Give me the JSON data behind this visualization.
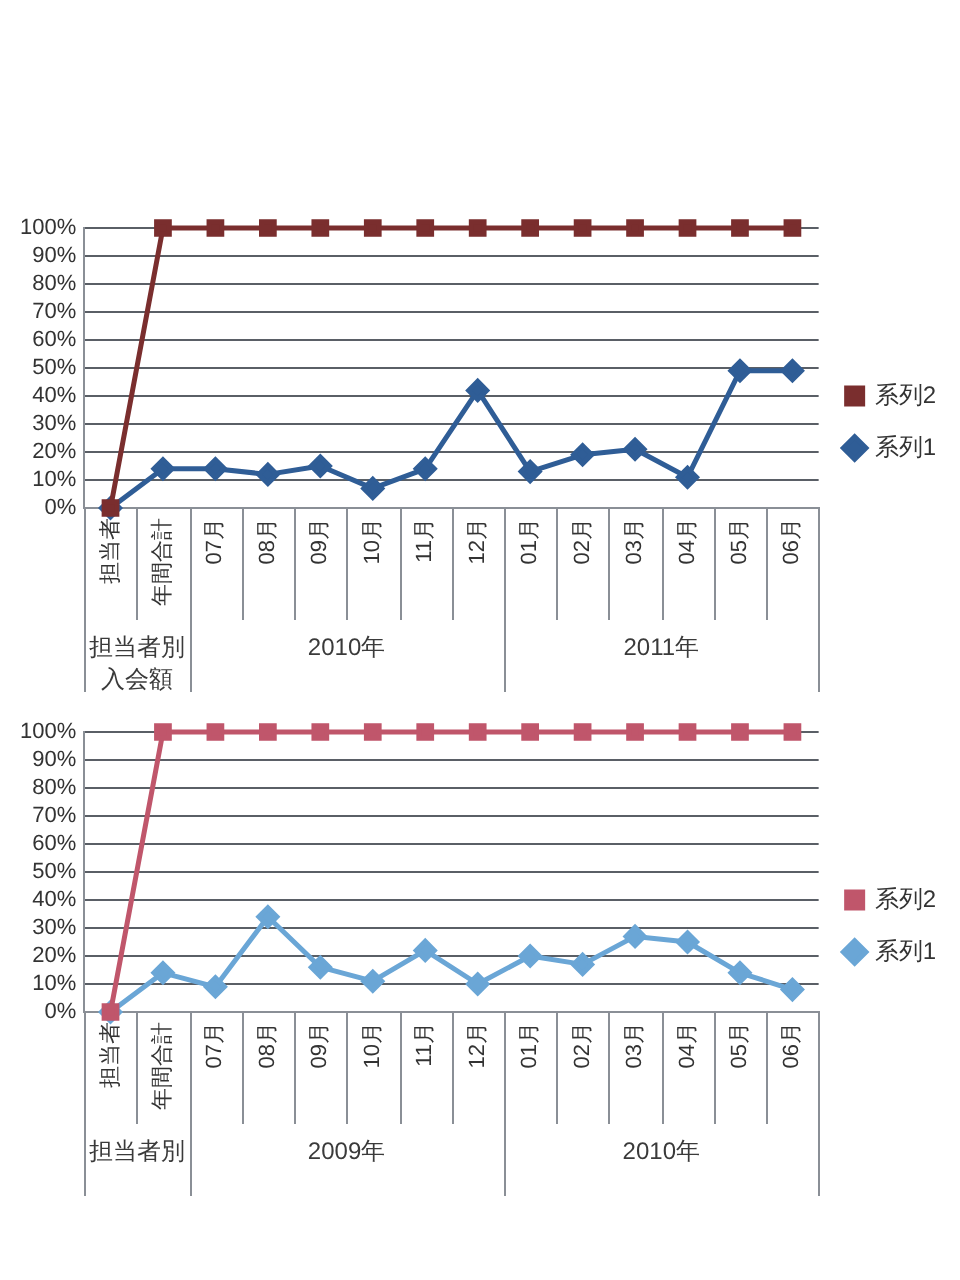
{
  "chart_data": [
    {
      "type": "line",
      "categories": [
        "担当者",
        "年間合計",
        "07月",
        "08月",
        "09月",
        "10月",
        "11月",
        "12月",
        "01月",
        "02月",
        "03月",
        "04月",
        "05月",
        "06月"
      ],
      "series": [
        {
          "name": "系列2",
          "color": "#7a2e2e",
          "marker": "square",
          "values": [
            0,
            100,
            100,
            100,
            100,
            100,
            100,
            100,
            100,
            100,
            100,
            100,
            100,
            100
          ]
        },
        {
          "name": "系列1",
          "color": "#2f5d96",
          "marker": "diamond",
          "values": [
            0,
            14,
            14,
            12,
            15,
            7,
            14,
            42,
            13,
            19,
            21,
            11,
            49,
            49
          ]
        }
      ],
      "ylim": [
        0,
        100
      ],
      "yticks": [
        {
          "value": 0,
          "label": "0%"
        },
        {
          "value": 10,
          "label": "10%"
        },
        {
          "value": 20,
          "label": "20%"
        },
        {
          "value": 30,
          "label": "30%"
        },
        {
          "value": 40,
          "label": "40%"
        },
        {
          "value": 50,
          "label": "50%"
        },
        {
          "value": 60,
          "label": "60%"
        },
        {
          "value": 70,
          "label": "70%"
        },
        {
          "value": 80,
          "label": "80%"
        },
        {
          "value": 90,
          "label": "90%"
        },
        {
          "value": 100,
          "label": "100%"
        }
      ],
      "grid": "y",
      "legend": "right",
      "annotations": [
        "担当者別入会額",
        "2010年",
        "2011年"
      ]
    },
    {
      "type": "line",
      "categories": [
        "担当者",
        "年間合計",
        "07月",
        "08月",
        "09月",
        "10月",
        "11月",
        "12月",
        "01月",
        "02月",
        "03月",
        "04月",
        "05月",
        "06月"
      ],
      "series": [
        {
          "name": "系列2",
          "color": "#c0566b",
          "marker": "square",
          "values": [
            0,
            100,
            100,
            100,
            100,
            100,
            100,
            100,
            100,
            100,
            100,
            100,
            100,
            100
          ]
        },
        {
          "name": "系列1",
          "color": "#6aa6d6",
          "marker": "diamond",
          "values": [
            0,
            14,
            9,
            34,
            16,
            11,
            22,
            10,
            20,
            17,
            27,
            25,
            14,
            8
          ]
        }
      ],
      "ylim": [
        0,
        100
      ],
      "yticks": [
        {
          "value": 0,
          "label": "0%"
        },
        {
          "value": 10,
          "label": "10%"
        },
        {
          "value": 20,
          "label": "20%"
        },
        {
          "value": 30,
          "label": "30%"
        },
        {
          "value": 40,
          "label": "40%"
        },
        {
          "value": 50,
          "label": "50%"
        },
        {
          "value": 60,
          "label": "60%"
        },
        {
          "value": 70,
          "label": "70%"
        },
        {
          "value": 80,
          "label": "80%"
        },
        {
          "value": 90,
          "label": "90%"
        },
        {
          "value": 100,
          "label": "100%"
        }
      ],
      "grid": "y",
      "legend": "right",
      "annotations": [
        "担当者別",
        "2009年",
        "2010年"
      ]
    }
  ]
}
